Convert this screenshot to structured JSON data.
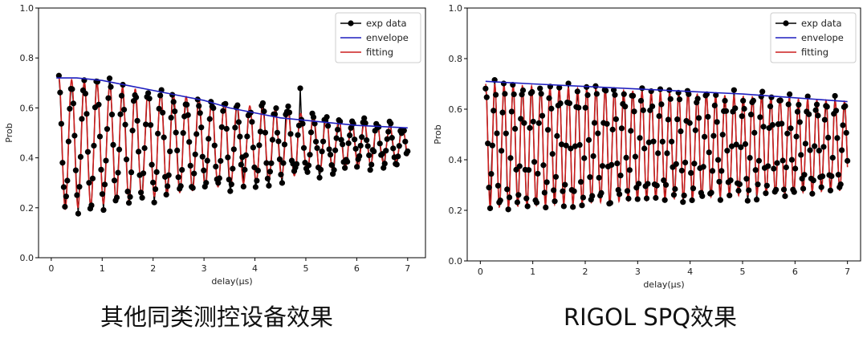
{
  "chart_data": [
    {
      "type": "line",
      "ylabel": "Prob",
      "xlabel": "delay(μs)",
      "xlim": [
        -0.25,
        7.35
      ],
      "ylim": [
        0.0,
        1.0
      ],
      "xticks": [
        "0",
        "1",
        "2",
        "3",
        "4",
        "5",
        "6",
        "7"
      ],
      "yticks": [
        "0.0",
        "0.2",
        "0.4",
        "0.6",
        "0.8",
        "1.0"
      ],
      "legend_position": "top-right",
      "legend": [
        "exp data",
        "envelope",
        "fitting"
      ],
      "colors": {
        "exp": "#000000",
        "envelope": "#1f1fbf",
        "fitting": "#cc1f1f"
      },
      "envelope": {
        "x": [
          0.1,
          0.5,
          1.0,
          1.5,
          2.0,
          2.5,
          3.0,
          3.5,
          4.0,
          4.5,
          5.0,
          5.5,
          6.0,
          6.5,
          7.0
        ],
        "y": [
          0.72,
          0.72,
          0.71,
          0.69,
          0.67,
          0.65,
          0.63,
          0.6,
          0.58,
          0.56,
          0.55,
          0.54,
          0.53,
          0.525,
          0.52
        ]
      },
      "fitting": {
        "mean": 0.455,
        "amp_start": 0.265,
        "amp_end": 0.06,
        "freq_cycles_per_us": 4.0,
        "x_start": 0.15,
        "x_end": 7.0,
        "phase": 0
      },
      "exp_data": {
        "x_start": 0.15,
        "x_end": 7.0,
        "count": 290,
        "noise": 0.03
      }
    },
    {
      "type": "line",
      "ylabel": "Prob",
      "xlabel": "delay(μs)",
      "xlim": [
        -0.25,
        7.25
      ],
      "ylim": [
        0.0,
        1.0
      ],
      "xticks": [
        "0",
        "1",
        "2",
        "3",
        "4",
        "5",
        "6",
        "7"
      ],
      "yticks": [
        "0.0",
        "0.2",
        "0.4",
        "0.6",
        "0.8",
        "1.0"
      ],
      "legend_position": "top-right",
      "legend": [
        "exp data",
        "envelope",
        "fitting"
      ],
      "colors": {
        "exp": "#000000",
        "envelope": "#1f1fbf",
        "fitting": "#cc1f1f"
      },
      "envelope": {
        "x": [
          0.1,
          1.0,
          2.0,
          3.0,
          4.0,
          5.0,
          6.0,
          7.0
        ],
        "y": [
          0.71,
          0.7,
          0.69,
          0.68,
          0.67,
          0.66,
          0.645,
          0.63
        ]
      },
      "fitting": {
        "mean": 0.455,
        "amp_start": 0.245,
        "amp_end": 0.175,
        "freq_cycles_per_us": 5.7,
        "x_start": 0.1,
        "x_end": 7.0,
        "phase": 0
      },
      "exp_data": {
        "x_start": 0.1,
        "x_end": 7.0,
        "count": 320,
        "noise": 0.025
      }
    }
  ],
  "captions": {
    "left": "其他同类测控设备效果",
    "right": "RIGOL SPQ效果"
  }
}
